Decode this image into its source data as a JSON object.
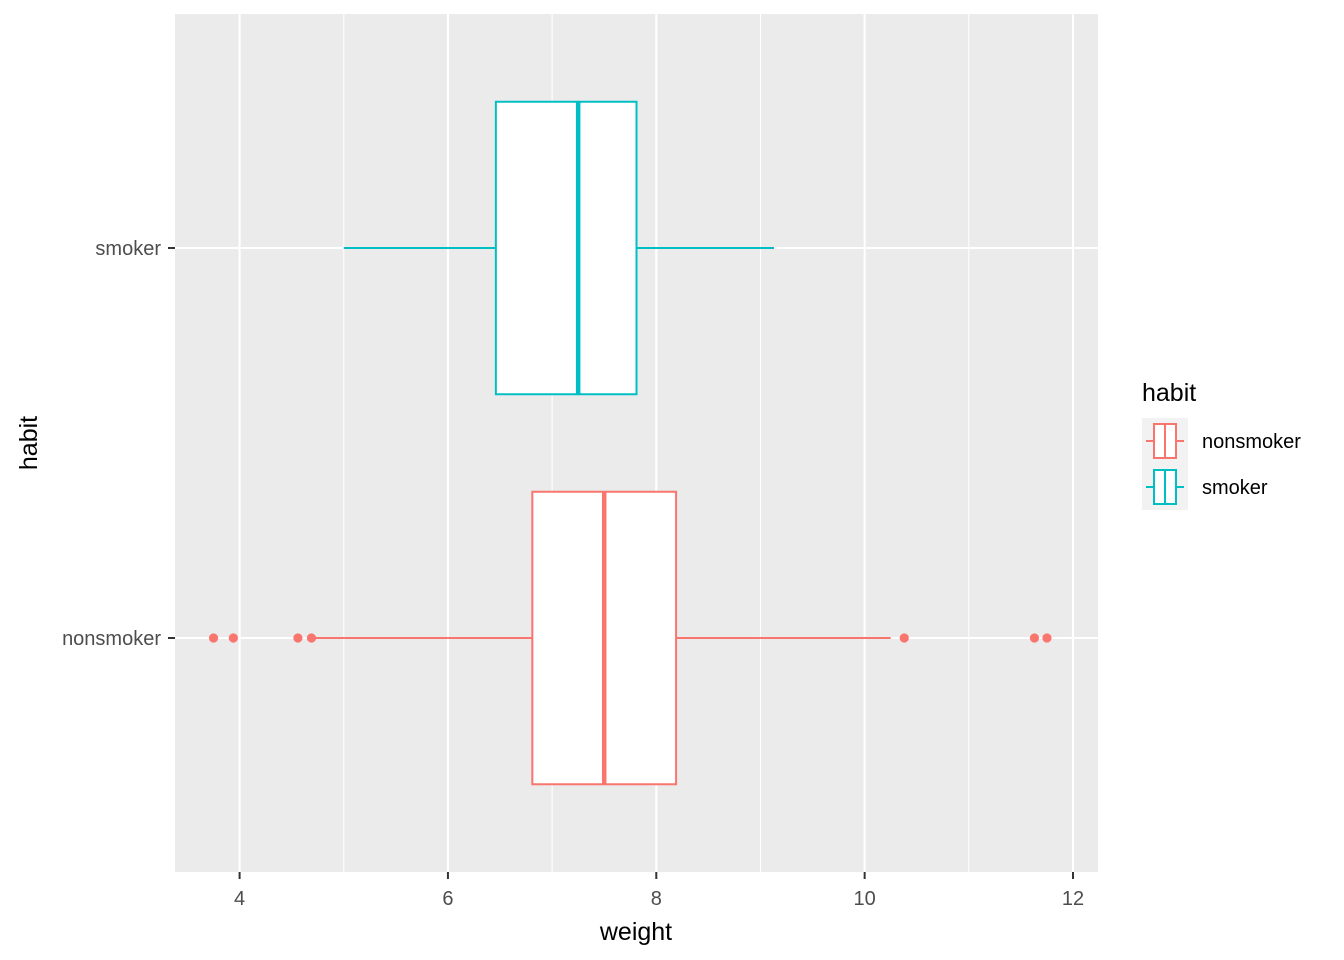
{
  "chart_data": {
    "type": "boxplot",
    "orientation": "horizontal",
    "xlabel": "weight",
    "ylabel": "habit",
    "xlim": [
      3.38,
      12.24
    ],
    "x_ticks": [
      4,
      6,
      8,
      10,
      12
    ],
    "x_tick_labels": [
      "4",
      "6",
      "8",
      "10",
      "12"
    ],
    "categories": [
      "nonsmoker",
      "smoker"
    ],
    "grid": true,
    "legend": {
      "title": "habit",
      "position": "right",
      "entries": [
        "nonsmoker",
        "smoker"
      ]
    },
    "series": [
      {
        "name": "nonsmoker",
        "color": "#F8766D",
        "whisker_low": 4.69,
        "q1": 6.81,
        "median": 7.5,
        "q3": 8.19,
        "whisker_high": 10.25,
        "outliers": [
          3.75,
          3.94,
          4.56,
          4.69,
          10.38,
          11.63,
          11.75
        ]
      },
      {
        "name": "smoker",
        "color": "#00BFC4",
        "whisker_low": 5.0,
        "q1": 6.46,
        "median": 7.25,
        "q3": 7.81,
        "whisker_high": 9.13,
        "outliers": []
      }
    ]
  },
  "colors": {
    "panel_background": "#EBEBEB",
    "grid_major": "#FFFFFF",
    "tick_text": "#4D4D4D",
    "tick_mark": "#333333"
  }
}
